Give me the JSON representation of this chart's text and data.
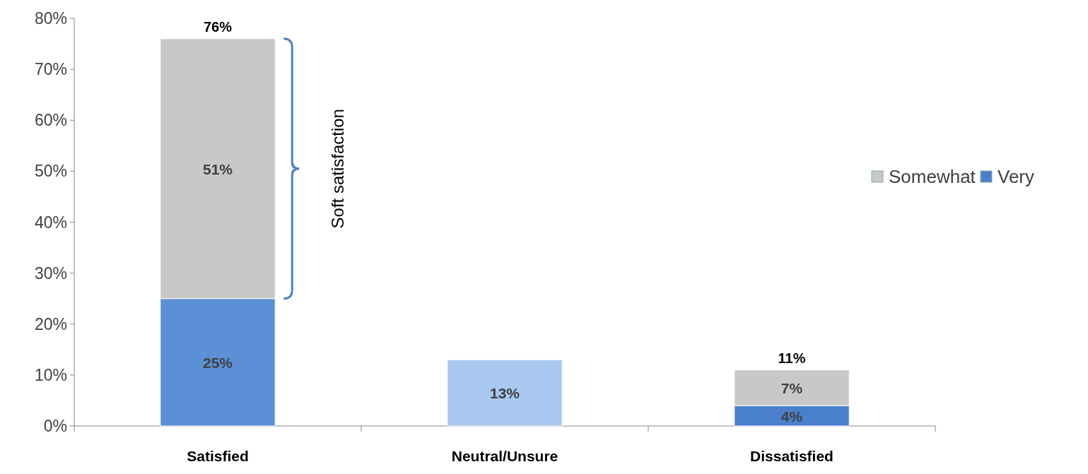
{
  "chart_data": {
    "type": "bar",
    "stacked": true,
    "categories": [
      "Satisfied",
      "Neutral/Unsure",
      "Dissatisfied"
    ],
    "series": [
      {
        "name": "Very",
        "color": "#4a7fcc",
        "colors": [
          "#5b8fd6",
          "#a9c8f0",
          "#4a7fcc"
        ],
        "values": [
          25,
          13,
          4
        ],
        "value_labels": [
          "25%",
          "13%",
          "4%"
        ]
      },
      {
        "name": "Somewhat",
        "color": "#c8c8c8",
        "values": [
          51,
          null,
          7
        ],
        "value_labels": [
          "51%",
          null,
          "7%"
        ]
      }
    ],
    "totals": [
      "76%",
      null,
      "11%"
    ],
    "annotations": [
      "Soft satisfaction"
    ],
    "ylim": [
      0,
      80
    ],
    "yticks": [
      {
        "value": 0,
        "label": "0%"
      },
      {
        "value": 10,
        "label": "10%"
      },
      {
        "value": 20,
        "label": "20%"
      },
      {
        "value": 30,
        "label": "30%"
      },
      {
        "value": 40,
        "label": "40%"
      },
      {
        "value": 50,
        "label": "50%"
      },
      {
        "value": 60,
        "label": "60%"
      },
      {
        "value": 70,
        "label": "70%"
      },
      {
        "value": 80,
        "label": "80%"
      }
    ],
    "legend": "right",
    "grid": false
  }
}
